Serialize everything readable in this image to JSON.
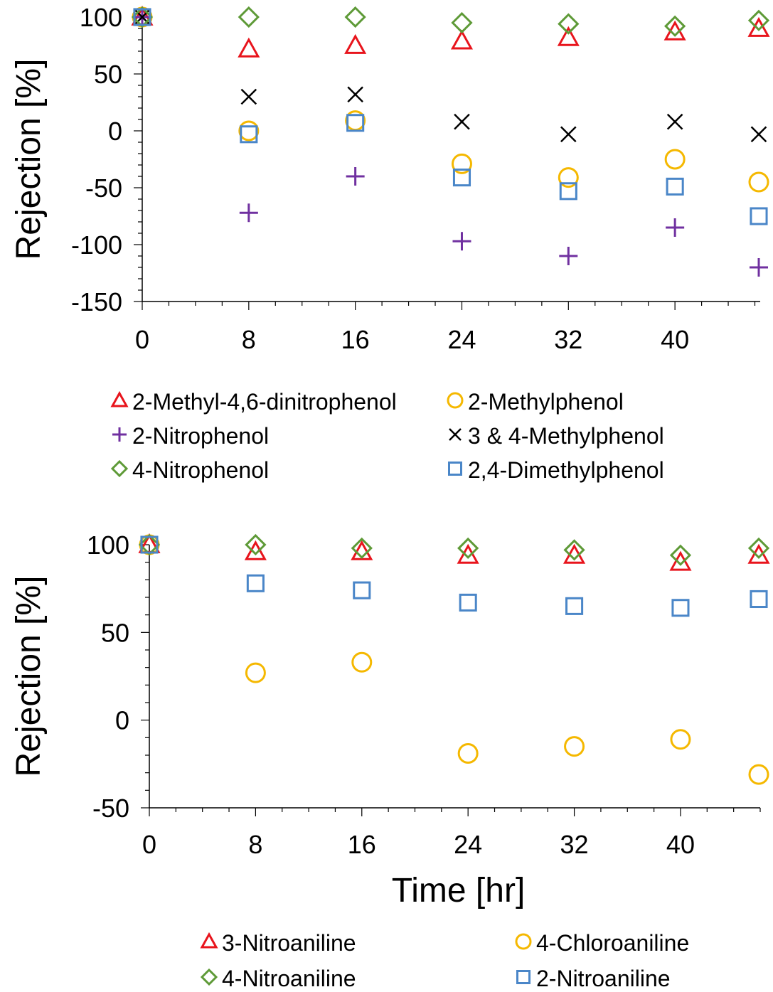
{
  "chart_data": [
    {
      "type": "scatter",
      "ylabel": "Rejection [%]",
      "xlabel": "",
      "xlim": [
        0,
        46.4
      ],
      "ylim": [
        -150,
        100
      ],
      "xticks": [
        0,
        8,
        16,
        24,
        32,
        40
      ],
      "yticks": [
        100,
        50,
        0,
        -50,
        -100,
        -150
      ],
      "grid": false,
      "legend_position": "bottom",
      "series": [
        {
          "name": "2-Methyl-4,6-dinitrophenol",
          "marker": "triangle",
          "color": "#e8141c",
          "x": [
            0,
            8,
            16,
            24,
            32,
            40,
            46.4
          ],
          "y": [
            100,
            72,
            75,
            79,
            82,
            87,
            90
          ]
        },
        {
          "name": "2-Methylphenol",
          "marker": "circle",
          "color": "#f5b800",
          "x": [
            0,
            8,
            16,
            24,
            32,
            40,
            46.4
          ],
          "y": [
            100,
            0,
            9,
            -29,
            -41,
            -25,
            -45
          ]
        },
        {
          "name": "2-Nitrophenol",
          "marker": "plus",
          "color": "#7030a0",
          "x": [
            0,
            8,
            16,
            24,
            32,
            40,
            46.4
          ],
          "y": [
            100,
            -72,
            -40,
            -97,
            -110,
            -85,
            -120
          ]
        },
        {
          "name": "3 & 4-Methylphenol",
          "marker": "cross",
          "color": "#000000",
          "x": [
            0,
            8,
            16,
            24,
            32,
            40,
            46.4
          ],
          "y": [
            100,
            30,
            32,
            8,
            -3,
            8,
            -3
          ]
        },
        {
          "name": "4-Nitrophenol",
          "marker": "diamond",
          "color": "#5e9a37",
          "x": [
            0,
            8,
            16,
            24,
            32,
            40,
            46.4
          ],
          "y": [
            100,
            100,
            100,
            95,
            94,
            92,
            97
          ]
        },
        {
          "name": "2,4-Dimethylphenol",
          "marker": "square",
          "color": "#4a86c8",
          "x": [
            0,
            8,
            16,
            24,
            32,
            40,
            46.4
          ],
          "y": [
            100,
            -3,
            7,
            -41,
            -53,
            -49,
            -75
          ]
        }
      ]
    },
    {
      "type": "scatter",
      "ylabel": "Rejection [%]",
      "xlabel": "Time [hr]",
      "xlim": [
        0,
        46
      ],
      "ylim": [
        -50,
        100
      ],
      "xticks": [
        0,
        8,
        16,
        24,
        32,
        40
      ],
      "yticks": [
        100,
        50,
        0,
        -50
      ],
      "grid": false,
      "legend_position": "bottom",
      "series": [
        {
          "name": "3-Nitroaniline",
          "marker": "triangle",
          "color": "#e8141c",
          "x": [
            0,
            8,
            16,
            24,
            32,
            40,
            46
          ],
          "y": [
            100,
            96,
            96,
            94,
            94,
            90,
            94
          ]
        },
        {
          "name": "4-Chloroaniline",
          "marker": "circle",
          "color": "#f5b800",
          "x": [
            0,
            8,
            16,
            24,
            32,
            40,
            46
          ],
          "y": [
            100,
            27,
            33,
            -19,
            -15,
            -11,
            -31
          ]
        },
        {
          "name": "4-Nitroaniline",
          "marker": "diamond",
          "color": "#5e9a37",
          "x": [
            0,
            8,
            16,
            24,
            32,
            40,
            46
          ],
          "y": [
            100,
            100,
            98,
            98,
            97,
            94,
            98
          ]
        },
        {
          "name": "2-Nitroaniline",
          "marker": "square",
          "color": "#4a86c8",
          "x": [
            0,
            8,
            16,
            24,
            32,
            40,
            46
          ],
          "y": [
            100,
            78,
            74,
            67,
            65,
            64,
            69
          ]
        }
      ]
    }
  ]
}
